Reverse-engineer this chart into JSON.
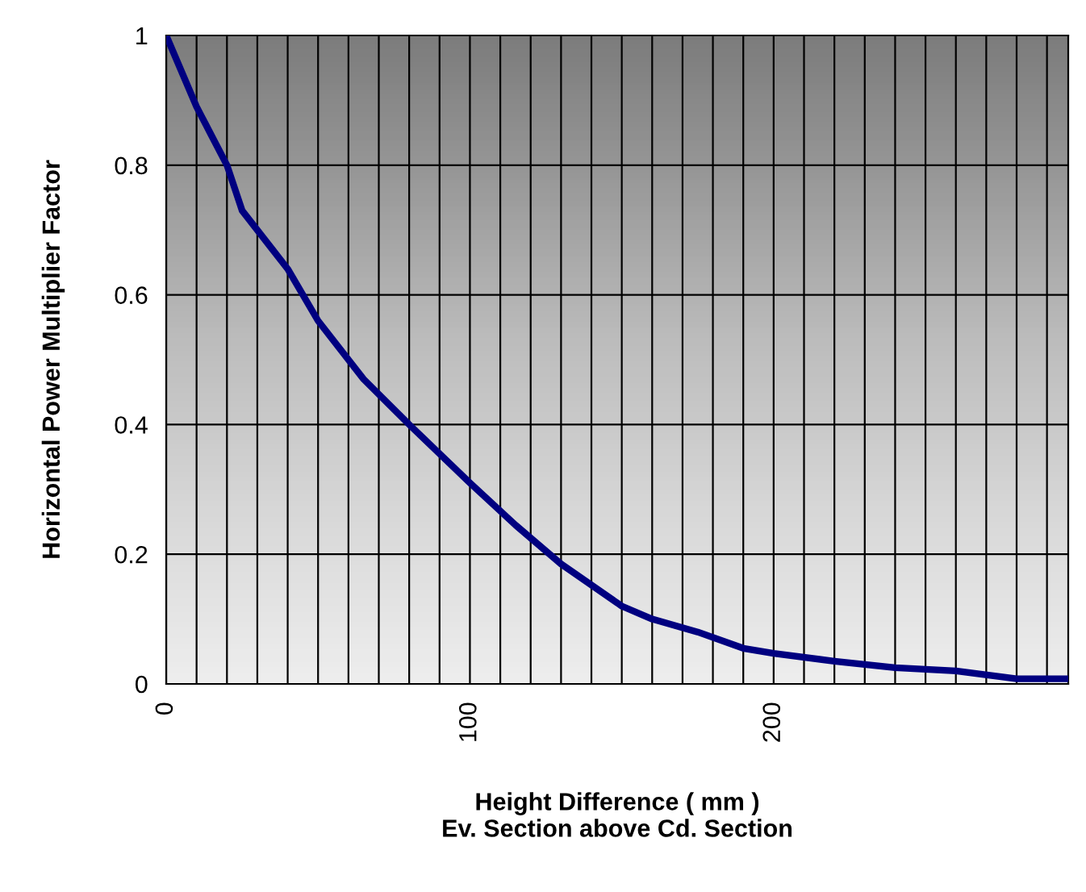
{
  "chart_data": {
    "type": "line",
    "xlabel": "Height Difference ( mm )\nEv. Section above Cd. Section",
    "ylabel": "Horizontal Power Multiplier Factor",
    "x": [
      0,
      10,
      20,
      25,
      35,
      40,
      50,
      65,
      80,
      100,
      115,
      130,
      150,
      160,
      175,
      190,
      200,
      220,
      240,
      260,
      280,
      297
    ],
    "series": [
      {
        "color": "#000080",
        "values": [
          1.0,
          0.89,
          0.8,
          0.73,
          0.67,
          0.64,
          0.56,
          0.47,
          0.4,
          0.31,
          0.245,
          0.185,
          0.12,
          0.1,
          0.08,
          0.055,
          0.047,
          0.035,
          0.025,
          0.02,
          0.008,
          0.008
        ]
      }
    ],
    "xlim": [
      0,
      297
    ],
    "ylim": [
      0,
      1
    ],
    "xticks": [
      0,
      {
        "value": 10,
        "label": null
      },
      {
        "value": 20,
        "label": null
      },
      {
        "value": 30,
        "label": null
      },
      {
        "value": 40,
        "label": null
      },
      {
        "value": 50,
        "label": null
      },
      {
        "value": 60,
        "label": null
      },
      {
        "value": 70,
        "label": null
      },
      {
        "value": 80,
        "label": null
      },
      {
        "value": 90,
        "label": null
      },
      100,
      {
        "value": 110,
        "label": null
      },
      {
        "value": 120,
        "label": null
      },
      {
        "value": 130,
        "label": null
      },
      {
        "value": 140,
        "label": null
      },
      {
        "value": 150,
        "label": null
      },
      {
        "value": 160,
        "label": null
      },
      {
        "value": 170,
        "label": null
      },
      {
        "value": 180,
        "label": null
      },
      {
        "value": 190,
        "label": null
      },
      200,
      {
        "value": 210,
        "label": null
      },
      {
        "value": 220,
        "label": null
      },
      {
        "value": 230,
        "label": null
      },
      {
        "value": 240,
        "label": null
      },
      {
        "value": 250,
        "label": null
      },
      {
        "value": 260,
        "label": null
      },
      {
        "value": 270,
        "label": null
      },
      {
        "value": 280,
        "label": null
      },
      {
        "value": 290,
        "label": null
      }
    ],
    "yticks": [
      0,
      0.2,
      0.4,
      0.6,
      0.8,
      1
    ],
    "grid": true,
    "marker": "none",
    "line_style": "solid"
  }
}
